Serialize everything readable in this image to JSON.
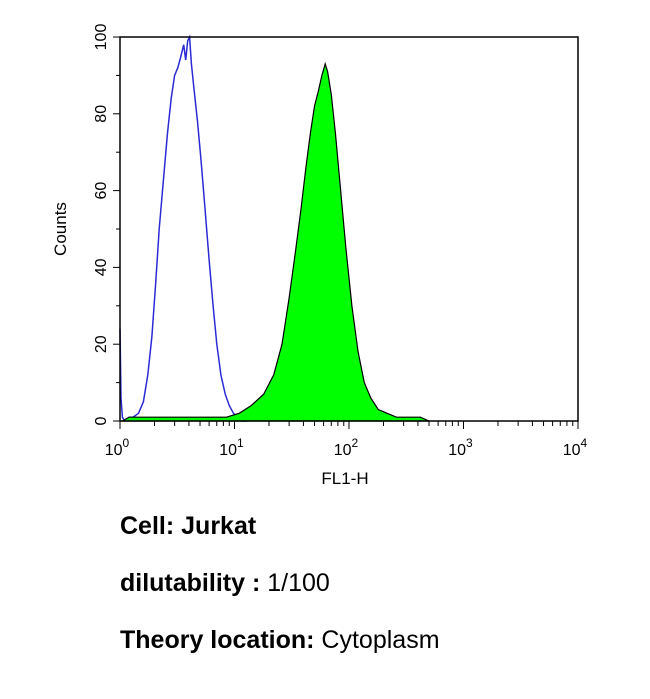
{
  "chart_data": {
    "type": "area",
    "xlabel": "FL1-H",
    "ylabel": "Counts",
    "x_scale": "log",
    "xlim": [
      1,
      10000
    ],
    "ylim": [
      0,
      100
    ],
    "x_ticks": [
      {
        "base": "10",
        "exp": "0"
      },
      {
        "base": "10",
        "exp": "1"
      },
      {
        "base": "10",
        "exp": "2"
      },
      {
        "base": "10",
        "exp": "3"
      },
      {
        "base": "10",
        "exp": "4"
      }
    ],
    "y_ticks": [
      "0",
      "20",
      "40",
      "60",
      "80",
      "100"
    ],
    "grid": false,
    "series": [
      {
        "style": "outline",
        "color": "#2b2bd6",
        "points": [
          [
            1.0,
            24
          ],
          [
            1.02,
            6
          ],
          [
            1.05,
            1
          ],
          [
            1.1,
            0
          ],
          [
            1.2,
            1
          ],
          [
            1.3,
            1
          ],
          [
            1.45,
            2
          ],
          [
            1.6,
            5
          ],
          [
            1.75,
            12
          ],
          [
            1.9,
            22
          ],
          [
            2.05,
            36
          ],
          [
            2.2,
            50
          ],
          [
            2.4,
            63
          ],
          [
            2.6,
            75
          ],
          [
            2.8,
            84
          ],
          [
            3.0,
            90
          ],
          [
            3.2,
            92
          ],
          [
            3.4,
            95
          ],
          [
            3.6,
            98
          ],
          [
            3.75,
            94
          ],
          [
            3.9,
            99
          ],
          [
            4.05,
            100
          ],
          [
            4.2,
            93
          ],
          [
            4.45,
            86
          ],
          [
            4.75,
            78
          ],
          [
            5.1,
            68
          ],
          [
            5.5,
            56
          ],
          [
            6.0,
            42
          ],
          [
            6.5,
            30
          ],
          [
            7.0,
            20
          ],
          [
            7.6,
            12
          ],
          [
            8.3,
            7
          ],
          [
            9.0,
            4
          ],
          [
            9.8,
            2
          ],
          [
            10.6,
            1
          ],
          [
            11.5,
            0
          ],
          [
            13,
            0
          ]
        ]
      },
      {
        "style": "filled",
        "color": "#00ff00",
        "points": [
          [
            1.05,
            0
          ],
          [
            1.2,
            1
          ],
          [
            1.6,
            1
          ],
          [
            2.2,
            1
          ],
          [
            3.0,
            1
          ],
          [
            4.2,
            1
          ],
          [
            6.0,
            1
          ],
          [
            8.5,
            1
          ],
          [
            11,
            2
          ],
          [
            14,
            4
          ],
          [
            18,
            7
          ],
          [
            22,
            12
          ],
          [
            26,
            20
          ],
          [
            30,
            32
          ],
          [
            34,
            44
          ],
          [
            38,
            55
          ],
          [
            42,
            66
          ],
          [
            46,
            75
          ],
          [
            50,
            82
          ],
          [
            54,
            86
          ],
          [
            58,
            90
          ],
          [
            62,
            93
          ],
          [
            65,
            91
          ],
          [
            70,
            85
          ],
          [
            76,
            75
          ],
          [
            84,
            61
          ],
          [
            94,
            45
          ],
          [
            106,
            30
          ],
          [
            120,
            18
          ],
          [
            136,
            10
          ],
          [
            155,
            6
          ],
          [
            180,
            3
          ],
          [
            215,
            2
          ],
          [
            260,
            1
          ],
          [
            330,
            1
          ],
          [
            420,
            1
          ],
          [
            500,
            0
          ]
        ]
      }
    ]
  },
  "captions": {
    "cell_label": "Cell:",
    "cell_value": "Jurkat",
    "dilutability_label": "dilutability :",
    "dilutability_value": "1/100",
    "location_label": "Theory location:",
    "location_value": "Cytoplasm"
  }
}
